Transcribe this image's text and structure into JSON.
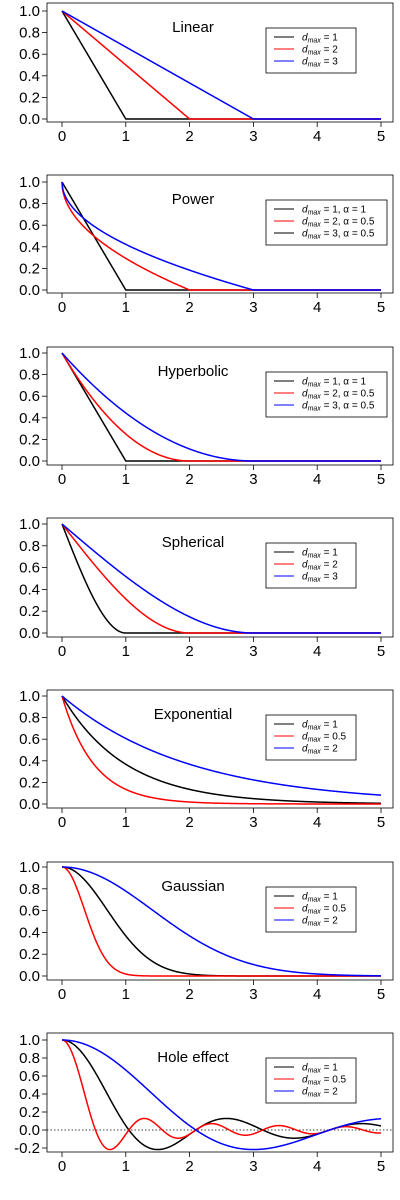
{
  "chart_data": [
    {
      "type": "line",
      "title": "Linear",
      "model": "linear",
      "xlim": [
        0,
        5
      ],
      "ylim": [
        0,
        1
      ],
      "xticks": [
        "0",
        "1",
        "2",
        "3",
        "4",
        "5"
      ],
      "yticks": [
        "0.0",
        "0.2",
        "0.4",
        "0.6",
        "0.8",
        "1.0"
      ],
      "legend_position": "top-right",
      "series": [
        {
          "legend": "d_max = 1",
          "legend_main": "d",
          "legend_sub": "max",
          "legend_rest": " = 1",
          "color": "#000000",
          "dmax": 1
        },
        {
          "legend": "d_max = 2",
          "legend_main": "d",
          "legend_sub": "max",
          "legend_rest": " = 2",
          "color": "#ff0000",
          "dmax": 2
        },
        {
          "legend": "d_max = 3",
          "legend_main": "d",
          "legend_sub": "max",
          "legend_rest": " = 3",
          "color": "#0000ff",
          "dmax": 3
        }
      ]
    },
    {
      "type": "line",
      "title": "Power",
      "model": "power",
      "xlim": [
        0,
        5
      ],
      "ylim": [
        0,
        1
      ],
      "xticks": [
        "0",
        "1",
        "2",
        "3",
        "4",
        "5"
      ],
      "yticks": [
        "0.0",
        "0.2",
        "0.4",
        "0.6",
        "0.8",
        "1.0"
      ],
      "legend_position": "top-right",
      "series": [
        {
          "legend": "d_max = 1, α = 1",
          "legend_main": "d",
          "legend_sub": "max",
          "legend_rest": " = 1, α = 1",
          "color": "#000000",
          "dmax": 1,
          "alpha": 1
        },
        {
          "legend": "d_max = 2, α = 0.5",
          "legend_main": "d",
          "legend_sub": "max",
          "legend_rest": " = 2, α = 0.5",
          "color": "#ff0000",
          "dmax": 2,
          "alpha": 0.5
        },
        {
          "legend": "d_max = 3, α = 0.5",
          "legend_main": "d",
          "legend_sub": "max",
          "legend_rest": " = 3, α = 0.5",
          "color": "#0000ff",
          "dmax": 3,
          "alpha": 0.5
        }
      ],
      "legend_line_colors": [
        "#000000",
        "#ff0000",
        "#000000"
      ]
    },
    {
      "type": "line",
      "title": "Hyperbolic",
      "model": "hyperbolic",
      "xlim": [
        0,
        5
      ],
      "ylim": [
        0,
        1
      ],
      "xticks": [
        "0",
        "1",
        "2",
        "3",
        "4",
        "5"
      ],
      "yticks": [
        "0.0",
        "0.2",
        "0.4",
        "0.6",
        "0.8",
        "1.0"
      ],
      "legend_position": "top-right",
      "series": [
        {
          "legend": "d_max = 1, α = 1",
          "legend_main": "d",
          "legend_sub": "max",
          "legend_rest": " = 1, α = 1",
          "color": "#000000",
          "dmax": 1,
          "alpha": 1
        },
        {
          "legend": "d_max = 2, α = 0.5",
          "legend_main": "d",
          "legend_sub": "max",
          "legend_rest": " = 2, α = 0.5",
          "color": "#ff0000",
          "dmax": 2,
          "alpha": 0.5
        },
        {
          "legend": "d_max = 3, α = 0.5",
          "legend_main": "d",
          "legend_sub": "max",
          "legend_rest": " = 3, α = 0.5",
          "color": "#0000ff",
          "dmax": 3,
          "alpha": 0.5
        }
      ]
    },
    {
      "type": "line",
      "title": "Spherical",
      "model": "spherical",
      "xlim": [
        0,
        5
      ],
      "ylim": [
        0,
        1
      ],
      "xticks": [
        "0",
        "1",
        "2",
        "3",
        "4",
        "5"
      ],
      "yticks": [
        "0.0",
        "0.2",
        "0.4",
        "0.6",
        "0.8",
        "1.0"
      ],
      "legend_position": "top-right",
      "series": [
        {
          "legend": "d_max = 1",
          "legend_main": "d",
          "legend_sub": "max",
          "legend_rest": " = 1",
          "color": "#000000",
          "dmax": 1
        },
        {
          "legend": "d_max = 2",
          "legend_main": "d",
          "legend_sub": "max",
          "legend_rest": " = 2",
          "color": "#ff0000",
          "dmax": 2
        },
        {
          "legend": "d_max = 3",
          "legend_main": "d",
          "legend_sub": "max",
          "legend_rest": " = 3",
          "color": "#0000ff",
          "dmax": 3
        }
      ]
    },
    {
      "type": "line",
      "title": "Exponential",
      "model": "exponential",
      "xlim": [
        0,
        5
      ],
      "ylim": [
        0,
        1
      ],
      "xticks": [
        "0",
        "1",
        "2",
        "3",
        "4",
        "5"
      ],
      "yticks": [
        "0.0",
        "0.2",
        "0.4",
        "0.6",
        "0.8",
        "1.0"
      ],
      "legend_position": "top-right",
      "series": [
        {
          "legend": "d_max = 1",
          "legend_main": "d",
          "legend_sub": "max",
          "legend_rest": " = 1",
          "color": "#000000",
          "dmax": 1
        },
        {
          "legend": "d_max = 0.5",
          "legend_main": "d",
          "legend_sub": "max",
          "legend_rest": " = 0.5",
          "color": "#ff0000",
          "dmax": 0.5
        },
        {
          "legend": "d_max = 2",
          "legend_main": "d",
          "legend_sub": "max",
          "legend_rest": " = 2",
          "color": "#0000ff",
          "dmax": 2
        }
      ]
    },
    {
      "type": "line",
      "title": "Gaussian",
      "model": "gaussian",
      "xlim": [
        0,
        5
      ],
      "ylim": [
        0,
        1
      ],
      "xticks": [
        "0",
        "1",
        "2",
        "3",
        "4",
        "5"
      ],
      "yticks": [
        "0.0",
        "0.2",
        "0.4",
        "0.6",
        "0.8",
        "1.0"
      ],
      "legend_position": "top-right",
      "series": [
        {
          "legend": "d_max = 1",
          "legend_main": "d",
          "legend_sub": "max",
          "legend_rest": " = 1",
          "color": "#000000",
          "dmax": 1
        },
        {
          "legend": "d_max = 0.5",
          "legend_main": "d",
          "legend_sub": "max",
          "legend_rest": " = 0.5",
          "color": "#ff0000",
          "dmax": 0.5
        },
        {
          "legend": "d_max = 2",
          "legend_main": "d",
          "legend_sub": "max",
          "legend_rest": " = 2",
          "color": "#0000ff",
          "dmax": 2
        }
      ]
    },
    {
      "type": "line",
      "title": "Hole effect",
      "model": "hole",
      "xlim": [
        0,
        5
      ],
      "ylim": [
        -0.2,
        1
      ],
      "xticks": [
        "0",
        "1",
        "2",
        "3",
        "4",
        "5"
      ],
      "yticks": [
        "-0.2",
        "0.0",
        "0.2",
        "0.4",
        "0.6",
        "0.8",
        "1.0"
      ],
      "reference_line_y": 0,
      "legend_position": "top-right",
      "series": [
        {
          "legend": "d_max = 1",
          "legend_main": "d",
          "legend_sub": "max",
          "legend_rest": " = 1",
          "color": "#000000",
          "dmax": 1
        },
        {
          "legend": "d_max = 0.5",
          "legend_main": "d",
          "legend_sub": "max",
          "legend_rest": " = 0.5",
          "color": "#ff0000",
          "dmax": 0.5
        },
        {
          "legend": "d_max = 2",
          "legend_main": "d",
          "legend_sub": "max",
          "legend_rest": " = 2",
          "color": "#0000ff",
          "dmax": 2
        }
      ]
    }
  ]
}
